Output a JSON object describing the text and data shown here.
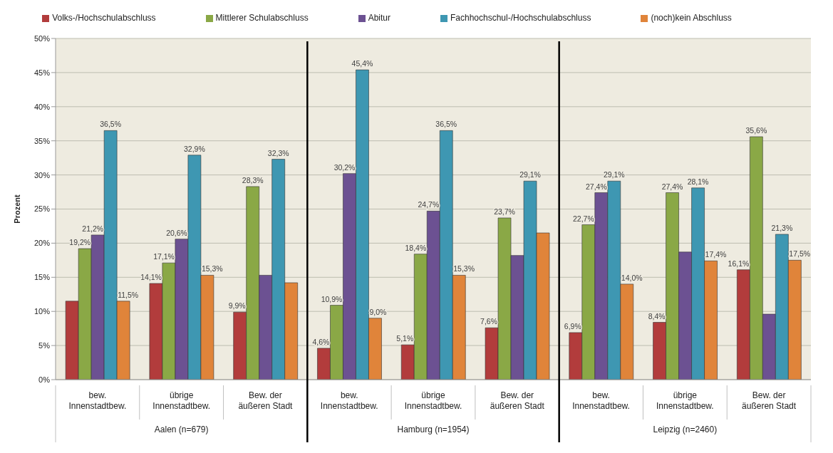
{
  "chart_data": {
    "type": "bar",
    "ylabel": "Prozent",
    "categories": [
      "bew.\nInnenstadtbew.",
      "übrige\nInnenstadtbew.",
      "Bew. der\näußeren Stadt",
      "bew.\nInnenstadtbew.",
      "übrige\nInnenstadtbew.",
      "Bew. der\näußeren Stadt",
      "bew.\nInnenstadtbew.",
      "übrige\nInnenstadtbew.",
      "Bew. der\näußeren Stadt"
    ],
    "annotations": [
      "Aalen (n=679)",
      "Hamburg (n=1954)",
      "Leipzig (n=2460)"
    ],
    "series": [
      {
        "name": "Volks-/Hochschulabschluss",
        "color": "#b23c3c",
        "values": [
          11.5,
          14.1,
          9.9,
          4.6,
          5.1,
          7.6,
          6.9,
          8.4,
          16.1
        ],
        "value_labels": [
          null,
          "14,1%",
          "9,9%",
          "4,6%",
          "5,1%",
          "7,6%",
          "6,9%",
          "8,4%",
          "16,1%"
        ]
      },
      {
        "name": "Mittlerer Schulabschluss",
        "color": "#8aa846",
        "values": [
          19.2,
          17.1,
          28.3,
          10.9,
          18.4,
          23.7,
          22.7,
          27.4,
          35.6
        ],
        "value_labels": [
          "19,2%",
          "17,1%",
          "28,3%",
          "10,9%",
          "18,4%",
          "23,7%",
          "22,7%",
          "27,4%",
          "35,6%"
        ]
      },
      {
        "name": "Abitur",
        "color": "#6c5192",
        "values": [
          21.2,
          20.6,
          15.3,
          30.2,
          24.7,
          18.2,
          27.4,
          18.7,
          9.6
        ],
        "value_labels": [
          "21,2%",
          "20,6%",
          null,
          "30,2%",
          "24,7%",
          null,
          "27,4%",
          null,
          null
        ]
      },
      {
        "name": "Fachhochschul-/Hochschulabschluss",
        "color": "#3e97b2",
        "values": [
          36.5,
          32.9,
          32.3,
          45.4,
          36.5,
          29.1,
          29.1,
          28.1,
          21.3
        ],
        "value_labels": [
          "36,5%",
          "32,9%",
          "32,3%",
          "45,4%",
          "36,5%",
          "29,1%",
          "29,1%",
          "28,1%",
          "21,3%"
        ]
      },
      {
        "name": "(noch)kein Abschluss",
        "color": "#e0843a",
        "values": [
          11.5,
          15.3,
          14.2,
          9.0,
          15.3,
          21.5,
          14.0,
          17.4,
          17.5
        ],
        "value_labels": [
          "11,5%",
          "15,3%",
          null,
          "9,0%",
          "15,3%",
          null,
          "14,0%",
          "17,4%",
          "17,5%"
        ]
      }
    ],
    "ylim": [
      0,
      50
    ],
    "yticks": [
      {
        "value": 0,
        "label": "0%"
      },
      {
        "value": 5,
        "label": "5%"
      },
      {
        "value": 10,
        "label": "10%"
      },
      {
        "value": 15,
        "label": "15%"
      },
      {
        "value": 20,
        "label": "20%"
      },
      {
        "value": 25,
        "label": "25%"
      },
      {
        "value": 30,
        "label": "30%"
      },
      {
        "value": 35,
        "label": "35%"
      },
      {
        "value": 40,
        "label": "40%"
      },
      {
        "value": 45,
        "label": "45%"
      },
      {
        "value": 50,
        "label": "50%"
      }
    ],
    "grid": "y",
    "legend": "top"
  }
}
